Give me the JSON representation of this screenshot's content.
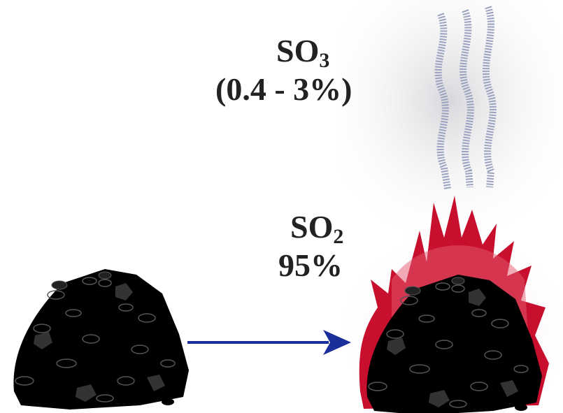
{
  "labels": [
    {
      "formula": "SO",
      "subscript": "3",
      "amount": "(0.4 - 3%)"
    },
    {
      "formula": "SO",
      "subscript": "2",
      "amount": "95%"
    }
  ]
}
